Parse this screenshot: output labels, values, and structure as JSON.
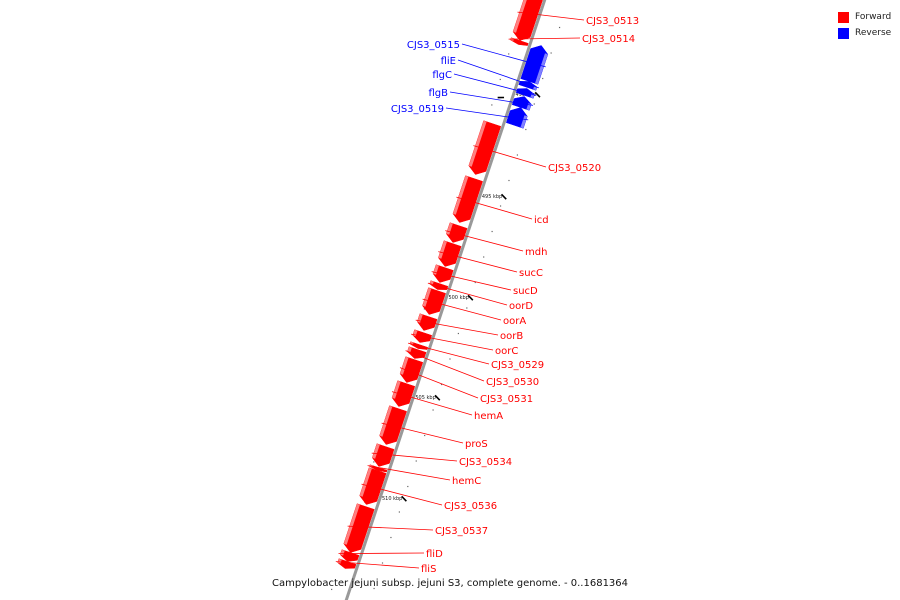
{
  "title": "Campylobacter jejuni subsp. jejuni S3, complete genome. - 0..1681364",
  "legend": {
    "forward": {
      "label": "Forward",
      "color": "#ff0000"
    },
    "reverse": {
      "label": "Reverse",
      "color": "#0000ff"
    }
  },
  "colors": {
    "backbone": "#999999",
    "forward": "#ff0000",
    "forward_light": "#ff8080",
    "reverse": "#0000ff",
    "reverse_light": "#8080ff",
    "tick": "#000000"
  },
  "ticks": [
    "490 kbp",
    "495 kbp",
    "500 kbp",
    "505 kbp",
    "510 kbp"
  ],
  "features": [
    {
      "name": "CJS3_0513",
      "strand": "forward"
    },
    {
      "name": "CJS3_0514",
      "strand": "forward"
    },
    {
      "name": "CJS3_0515",
      "strand": "reverse"
    },
    {
      "name": "fliE",
      "strand": "reverse"
    },
    {
      "name": "flgC",
      "strand": "reverse"
    },
    {
      "name": "flgB",
      "strand": "reverse"
    },
    {
      "name": "CJS3_0519",
      "strand": "reverse"
    },
    {
      "name": "CJS3_0520",
      "strand": "forward"
    },
    {
      "name": "icd",
      "strand": "forward"
    },
    {
      "name": "mdh",
      "strand": "forward"
    },
    {
      "name": "sucC",
      "strand": "forward"
    },
    {
      "name": "sucD",
      "strand": "forward"
    },
    {
      "name": "oorD",
      "strand": "forward"
    },
    {
      "name": "oorA",
      "strand": "forward"
    },
    {
      "name": "oorB",
      "strand": "forward"
    },
    {
      "name": "oorC",
      "strand": "forward"
    },
    {
      "name": "CJS3_0529",
      "strand": "forward"
    },
    {
      "name": "CJS3_0530",
      "strand": "forward"
    },
    {
      "name": "CJS3_0531",
      "strand": "forward"
    },
    {
      "name": "hemA",
      "strand": "forward"
    },
    {
      "name": "proS",
      "strand": "forward"
    },
    {
      "name": "CJS3_0534",
      "strand": "forward"
    },
    {
      "name": "hemC",
      "strand": "forward"
    },
    {
      "name": "CJS3_0536",
      "strand": "forward"
    },
    {
      "name": "CJS3_0537",
      "strand": "forward"
    },
    {
      "name": "fliD",
      "strand": "forward"
    },
    {
      "name": "fliS",
      "strand": "forward"
    }
  ]
}
